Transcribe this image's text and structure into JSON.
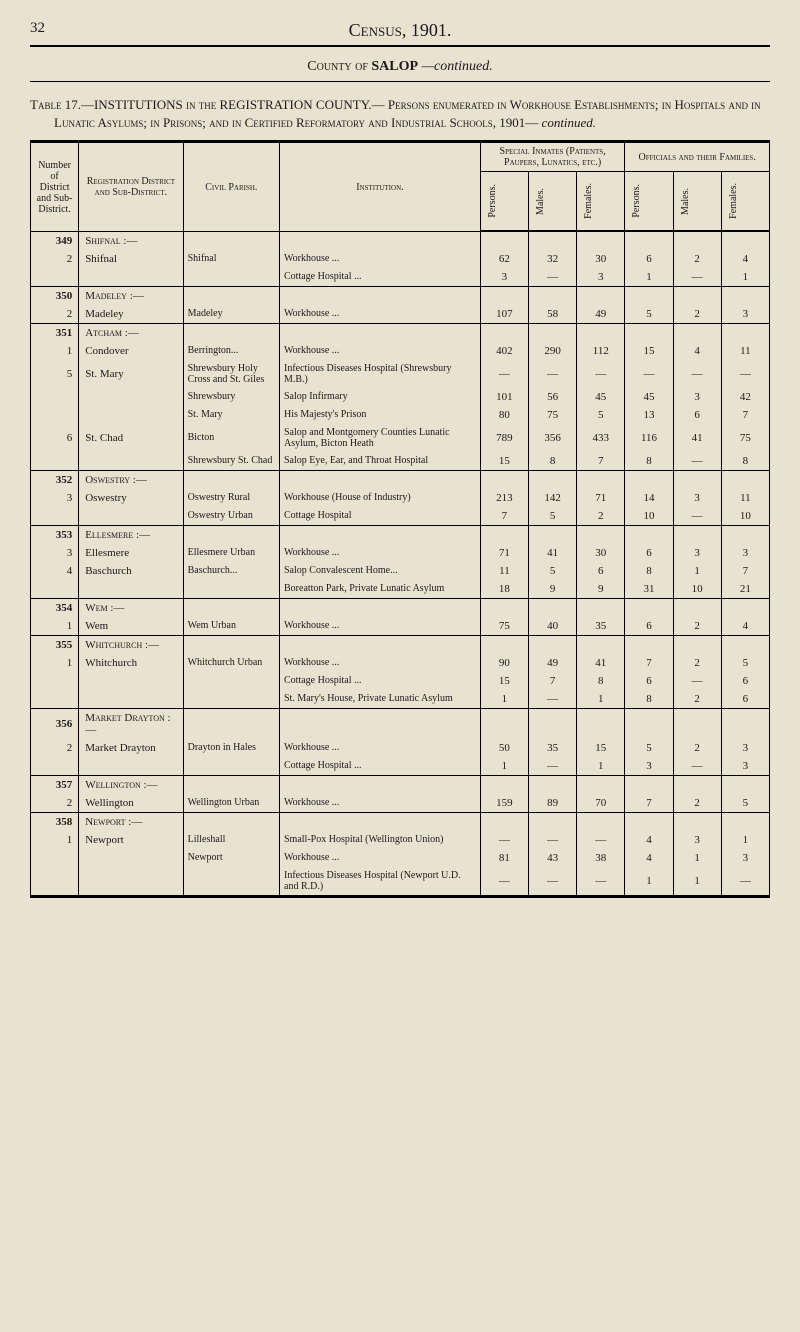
{
  "page": {
    "number": "32",
    "header": "Census, 1901.",
    "county_line_prefix": "County of ",
    "county_name": "SALOP",
    "county_suffix": "—continued."
  },
  "table_title": {
    "prefix": "Table 17.—INSTITUTIONS in the REGISTRATION COUNTY.—",
    "body": "Persons enumerated in Workhouse Establishments; in Hospitals and in Lunatic Asylums; in Prisons; and in Certified Reformatory and Industrial Schools, 1901—",
    "suffix": "continued."
  },
  "columns": {
    "c1": "Number of District and Sub-District.",
    "c2": "Registration District and Sub-District.",
    "c3": "Civil Parish.",
    "c4": "Institution.",
    "g1": "Special Inmates (Patients, Paupers, Lunatics, etc.)",
    "g2": "Officials and their Families.",
    "persons": "Persons.",
    "males": "Males.",
    "females": "Females."
  },
  "rows": [
    {
      "type": "district",
      "num": "349",
      "reg": "Shifnal :—"
    },
    {
      "type": "sub",
      "num": "2",
      "reg": "Shifnal",
      "par": "Shifnal",
      "inst": "Workhouse ...",
      "p": "62",
      "m": "32",
      "f": "30",
      "op": "6",
      "om": "2",
      "of": "4"
    },
    {
      "type": "sub",
      "num": "",
      "reg": "",
      "par": "",
      "inst": "Cottage Hospital ...",
      "p": "3",
      "m": "—",
      "f": "3",
      "op": "1",
      "om": "—",
      "of": "1"
    },
    {
      "type": "district",
      "num": "350",
      "reg": "Madeley :—"
    },
    {
      "type": "sub",
      "num": "2",
      "reg": "Madeley",
      "par": "Madeley",
      "inst": "Workhouse ...",
      "p": "107",
      "m": "58",
      "f": "49",
      "op": "5",
      "om": "2",
      "of": "3"
    },
    {
      "type": "district",
      "num": "351",
      "reg": "Atcham :—"
    },
    {
      "type": "sub",
      "num": "1",
      "reg": "Condover",
      "par": "Berrington...",
      "inst": "Workhouse ...",
      "p": "402",
      "m": "290",
      "f": "112",
      "op": "15",
      "om": "4",
      "of": "11"
    },
    {
      "type": "sub",
      "num": "5",
      "reg": "St. Mary",
      "par": "Shrewsbury Holy Cross and St. Giles",
      "inst": "Infectious Diseases Hospital (Shrewsbury M.B.)",
      "p": "—",
      "m": "—",
      "f": "—",
      "op": "—",
      "om": "—",
      "of": "—"
    },
    {
      "type": "sub",
      "num": "",
      "reg": "",
      "par": "Shrewsbury",
      "inst": "Salop Infirmary",
      "p": "101",
      "m": "56",
      "f": "45",
      "op": "45",
      "om": "3",
      "of": "42"
    },
    {
      "type": "sub",
      "num": "",
      "reg": "",
      "par": "St. Mary",
      "inst": "His Majesty's Prison",
      "p": "80",
      "m": "75",
      "f": "5",
      "op": "13",
      "om": "6",
      "of": "7"
    },
    {
      "type": "sub",
      "num": "6",
      "reg": "St. Chad",
      "par": "Bicton",
      "inst": "Salop and Montgomery Counties Lunatic Asylum, Bicton Heath",
      "p": "789",
      "m": "356",
      "f": "433",
      "op": "116",
      "om": "41",
      "of": "75"
    },
    {
      "type": "sub",
      "num": "",
      "reg": "",
      "par": "Shrewsbury St. Chad",
      "inst": "Salop Eye, Ear, and Throat Hospital",
      "p": "15",
      "m": "8",
      "f": "7",
      "op": "8",
      "om": "—",
      "of": "8"
    },
    {
      "type": "district",
      "num": "352",
      "reg": "Oswestry :—"
    },
    {
      "type": "sub",
      "num": "3",
      "reg": "Oswestry",
      "par": "Oswestry Rural",
      "inst": "Workhouse (House of Industry)",
      "p": "213",
      "m": "142",
      "f": "71",
      "op": "14",
      "om": "3",
      "of": "11"
    },
    {
      "type": "sub",
      "num": "",
      "reg": "",
      "par": "Oswestry Urban",
      "inst": "Cottage Hospital",
      "p": "7",
      "m": "5",
      "f": "2",
      "op": "10",
      "om": "—",
      "of": "10"
    },
    {
      "type": "district",
      "num": "353",
      "reg": "Ellesmere :—"
    },
    {
      "type": "sub",
      "num": "3",
      "reg": "Ellesmere",
      "par": "Ellesmere Urban",
      "inst": "Workhouse ...",
      "p": "71",
      "m": "41",
      "f": "30",
      "op": "6",
      "om": "3",
      "of": "3"
    },
    {
      "type": "sub",
      "num": "4",
      "reg": "Baschurch",
      "par": "Baschurch...",
      "inst": "Salop Convalescent Home...",
      "p": "11",
      "m": "5",
      "f": "6",
      "op": "8",
      "om": "1",
      "of": "7"
    },
    {
      "type": "sub",
      "num": "",
      "reg": "",
      "par": "",
      "inst": "Boreatton Park, Private Lunatic Asylum",
      "p": "18",
      "m": "9",
      "f": "9",
      "op": "31",
      "om": "10",
      "of": "21"
    },
    {
      "type": "district",
      "num": "354",
      "reg": "Wem :—"
    },
    {
      "type": "sub",
      "num": "1",
      "reg": "Wem",
      "par": "Wem Urban",
      "inst": "Workhouse ...",
      "p": "75",
      "m": "40",
      "f": "35",
      "op": "6",
      "om": "2",
      "of": "4"
    },
    {
      "type": "district",
      "num": "355",
      "reg": "Whitchurch :—"
    },
    {
      "type": "sub",
      "num": "1",
      "reg": "Whitchurch",
      "par": "Whitchurch Urban",
      "inst": "Workhouse ...",
      "p": "90",
      "m": "49",
      "f": "41",
      "op": "7",
      "om": "2",
      "of": "5"
    },
    {
      "type": "sub",
      "num": "",
      "reg": "",
      "par": "",
      "inst": "Cottage Hospital ...",
      "p": "15",
      "m": "7",
      "f": "8",
      "op": "6",
      "om": "—",
      "of": "6"
    },
    {
      "type": "sub",
      "num": "",
      "reg": "",
      "par": "",
      "inst": "St. Mary's House, Private Lunatic Asylum",
      "p": "1",
      "m": "—",
      "f": "1",
      "op": "8",
      "om": "2",
      "of": "6"
    },
    {
      "type": "district",
      "num": "356",
      "reg": "Market Drayton :—"
    },
    {
      "type": "sub",
      "num": "2",
      "reg": "Market Drayton",
      "par": "Drayton in Hales",
      "inst": "Workhouse ...",
      "p": "50",
      "m": "35",
      "f": "15",
      "op": "5",
      "om": "2",
      "of": "3"
    },
    {
      "type": "sub",
      "num": "",
      "reg": "",
      "par": "",
      "inst": "Cottage Hospital ...",
      "p": "1",
      "m": "—",
      "f": "1",
      "op": "3",
      "om": "—",
      "of": "3"
    },
    {
      "type": "district",
      "num": "357",
      "reg": "Wellington :—"
    },
    {
      "type": "sub",
      "num": "2",
      "reg": "Wellington",
      "par": "Wellington Urban",
      "inst": "Workhouse ...",
      "p": "159",
      "m": "89",
      "f": "70",
      "op": "7",
      "om": "2",
      "of": "5"
    },
    {
      "type": "district",
      "num": "358",
      "reg": "Newport :—"
    },
    {
      "type": "sub",
      "num": "1",
      "reg": "Newport",
      "par": "Lilleshall",
      "inst": "Small-Pox Hospital (Wellington Union)",
      "p": "—",
      "m": "—",
      "f": "—",
      "op": "4",
      "om": "3",
      "of": "1"
    },
    {
      "type": "sub",
      "num": "",
      "reg": "",
      "par": "Newport",
      "inst": "Workhouse ...",
      "p": "81",
      "m": "43",
      "f": "38",
      "op": "4",
      "om": "1",
      "of": "3"
    },
    {
      "type": "sub",
      "num": "",
      "reg": "",
      "par": "",
      "inst": "Infectious Diseases Hospital (Newport U.D. and R.D.)",
      "p": "—",
      "m": "—",
      "f": "—",
      "op": "1",
      "om": "1",
      "of": "—"
    }
  ],
  "layout": {
    "col_widths": [
      "6%",
      "13%",
      "12%",
      "25%",
      "6%",
      "6%",
      "6%",
      "6%",
      "6%",
      "6%"
    ]
  }
}
